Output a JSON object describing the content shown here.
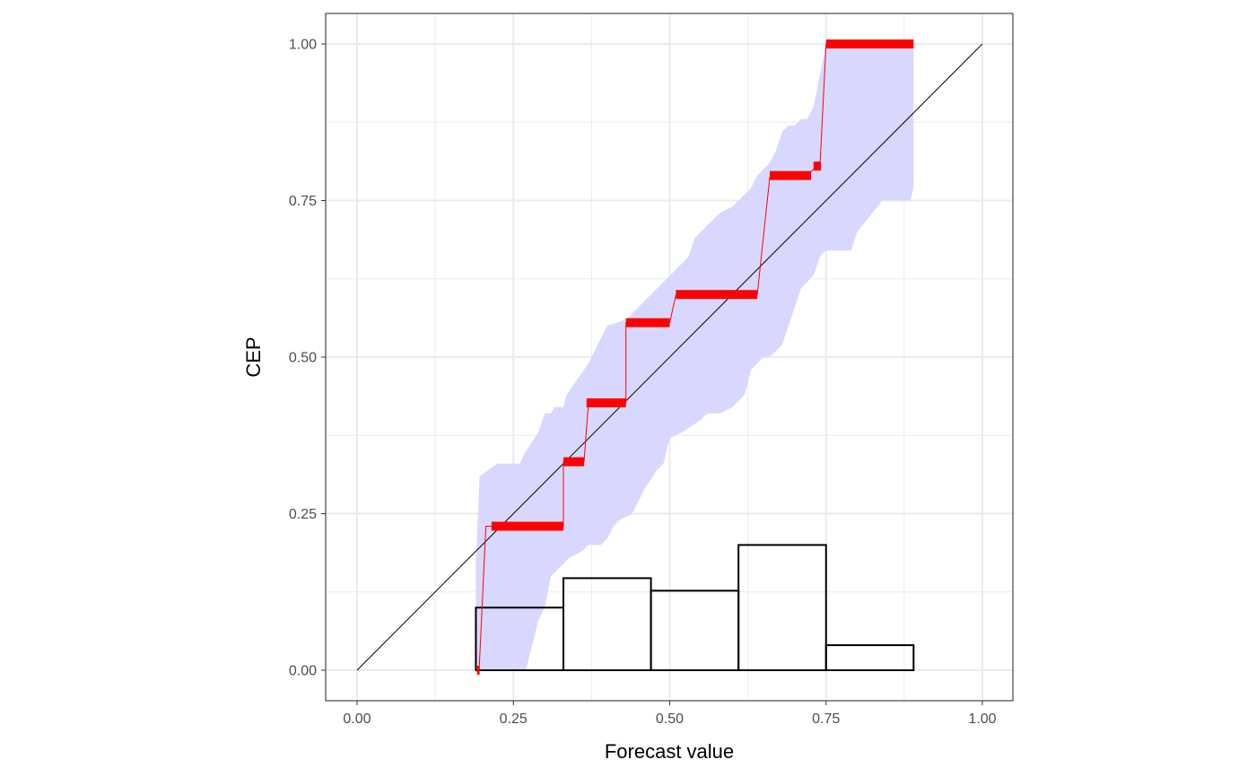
{
  "chart_data": {
    "type": "line",
    "title": "",
    "xlabel": "Forecast value",
    "ylabel": "CEP",
    "xlim": [
      -0.05,
      1.05
    ],
    "ylim": [
      -0.05,
      1.05
    ],
    "x_ticks": [
      0.0,
      0.25,
      0.5,
      0.75,
      1.0
    ],
    "x_tick_labels": [
      "0.00",
      "0.25",
      "0.50",
      "0.75",
      "1.00"
    ],
    "y_ticks": [
      0.0,
      0.25,
      0.5,
      0.75,
      1.0
    ],
    "y_tick_labels": [
      "0.00",
      "0.25",
      "0.50",
      "0.75",
      "1.00"
    ],
    "grid": true,
    "legend": "none",
    "colors": {
      "cep": "#ff0000",
      "band": "#d8d8ff",
      "diagonal": "#000000",
      "histogram": "#000000"
    },
    "diagonal": [
      [
        0,
        0
      ],
      [
        1,
        1
      ]
    ],
    "band": {
      "upper": [
        [
          0.19,
          0.17
        ],
        [
          0.196,
          0.31
        ],
        [
          0.21,
          0.32
        ],
        [
          0.225,
          0.33
        ],
        [
          0.26,
          0.33
        ],
        [
          0.27,
          0.35
        ],
        [
          0.29,
          0.38
        ],
        [
          0.3,
          0.41
        ],
        [
          0.31,
          0.41
        ],
        [
          0.315,
          0.42
        ],
        [
          0.33,
          0.42
        ],
        [
          0.335,
          0.44
        ],
        [
          0.37,
          0.49
        ],
        [
          0.38,
          0.51
        ],
        [
          0.39,
          0.53
        ],
        [
          0.4,
          0.55
        ],
        [
          0.43,
          0.56
        ],
        [
          0.44,
          0.57
        ],
        [
          0.45,
          0.58
        ],
        [
          0.46,
          0.59
        ],
        [
          0.47,
          0.6
        ],
        [
          0.49,
          0.62
        ],
        [
          0.5,
          0.63
        ],
        [
          0.51,
          0.64
        ],
        [
          0.52,
          0.65
        ],
        [
          0.53,
          0.66
        ],
        [
          0.54,
          0.69
        ],
        [
          0.55,
          0.7
        ],
        [
          0.56,
          0.71
        ],
        [
          0.57,
          0.72
        ],
        [
          0.58,
          0.73
        ],
        [
          0.6,
          0.74
        ],
        [
          0.63,
          0.77
        ],
        [
          0.64,
          0.79
        ],
        [
          0.65,
          0.8
        ],
        [
          0.66,
          0.81
        ],
        [
          0.67,
          0.83
        ],
        [
          0.68,
          0.86
        ],
        [
          0.69,
          0.87
        ],
        [
          0.7,
          0.87
        ],
        [
          0.71,
          0.88
        ],
        [
          0.72,
          0.88
        ],
        [
          0.73,
          0.9
        ],
        [
          0.74,
          0.95
        ],
        [
          0.75,
          1.0
        ],
        [
          0.89,
          1.0
        ]
      ],
      "lower": [
        [
          0.89,
          0.77
        ],
        [
          0.885,
          0.75
        ],
        [
          0.84,
          0.75
        ],
        [
          0.8,
          0.7
        ],
        [
          0.79,
          0.67
        ],
        [
          0.75,
          0.67
        ],
        [
          0.74,
          0.66
        ],
        [
          0.73,
          0.63
        ],
        [
          0.72,
          0.62
        ],
        [
          0.71,
          0.61
        ],
        [
          0.7,
          0.58
        ],
        [
          0.69,
          0.55
        ],
        [
          0.68,
          0.52
        ],
        [
          0.67,
          0.51
        ],
        [
          0.66,
          0.5
        ],
        [
          0.65,
          0.5
        ],
        [
          0.64,
          0.49
        ],
        [
          0.63,
          0.48
        ],
        [
          0.62,
          0.44
        ],
        [
          0.61,
          0.43
        ],
        [
          0.6,
          0.42
        ],
        [
          0.58,
          0.41
        ],
        [
          0.56,
          0.41
        ],
        [
          0.55,
          0.4
        ],
        [
          0.52,
          0.38
        ],
        [
          0.5,
          0.37
        ],
        [
          0.49,
          0.33
        ],
        [
          0.48,
          0.32
        ],
        [
          0.46,
          0.29
        ],
        [
          0.45,
          0.27
        ],
        [
          0.44,
          0.25
        ],
        [
          0.42,
          0.24
        ],
        [
          0.41,
          0.23
        ],
        [
          0.4,
          0.21
        ],
        [
          0.39,
          0.2
        ],
        [
          0.37,
          0.2
        ],
        [
          0.36,
          0.19
        ],
        [
          0.34,
          0.18
        ],
        [
          0.31,
          0.15
        ],
        [
          0.3,
          0.1
        ],
        [
          0.29,
          0.08
        ],
        [
          0.28,
          0.04
        ],
        [
          0.27,
          0.0
        ],
        [
          0.19,
          0.0
        ]
      ]
    },
    "cep_line": [
      [
        0.19,
        0.0
      ],
      [
        0.195,
        -0.005
      ],
      [
        0.206,
        0.23
      ],
      [
        0.215,
        0.23
      ],
      [
        0.33,
        0.23
      ],
      [
        0.33,
        0.333
      ],
      [
        0.363,
        0.333
      ],
      [
        0.37,
        0.427
      ],
      [
        0.43,
        0.427
      ],
      [
        0.43,
        0.555
      ],
      [
        0.5,
        0.555
      ],
      [
        0.51,
        0.6
      ],
      [
        0.64,
        0.6
      ],
      [
        0.66,
        0.787
      ],
      [
        0.72,
        0.79
      ],
      [
        0.73,
        0.8
      ],
      [
        0.74,
        0.8
      ],
      [
        0.75,
        1.0
      ],
      [
        0.89,
        1.0
      ]
    ],
    "cep_segments": [
      {
        "x0": 0.192,
        "x1": 0.196,
        "y": 0.0
      },
      {
        "x0": 0.215,
        "x1": 0.33,
        "y": 0.23
      },
      {
        "x0": 0.33,
        "x1": 0.363,
        "y": 0.333
      },
      {
        "x0": 0.367,
        "x1": 0.43,
        "y": 0.427
      },
      {
        "x0": 0.43,
        "x1": 0.5,
        "y": 0.555
      },
      {
        "x0": 0.51,
        "x1": 0.64,
        "y": 0.6
      },
      {
        "x0": 0.66,
        "x1": 0.726,
        "y": 0.79
      },
      {
        "x0": 0.73,
        "x1": 0.742,
        "y": 0.805
      },
      {
        "x0": 0.75,
        "x1": 0.89,
        "y": 1.0
      }
    ],
    "histogram": [
      {
        "x0": 0.19,
        "x1": 0.33,
        "height": 0.1
      },
      {
        "x0": 0.33,
        "x1": 0.47,
        "height": 0.147
      },
      {
        "x0": 0.47,
        "x1": 0.61,
        "height": 0.127
      },
      {
        "x0": 0.61,
        "x1": 0.75,
        "height": 0.2
      },
      {
        "x0": 0.75,
        "x1": 0.89,
        "height": 0.04
      }
    ]
  }
}
